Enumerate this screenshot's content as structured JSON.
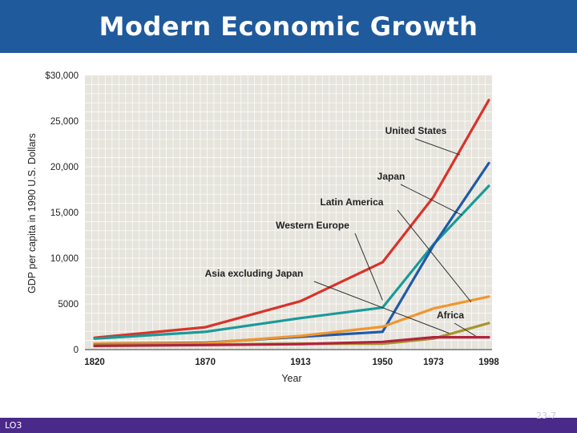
{
  "slide": {
    "title": "Modern Economic Growth",
    "footer_left": "LO3",
    "footer_right": "23-7"
  },
  "colors": {
    "title_bar": "#1f5a9c",
    "footer_bar": "#4a2a88",
    "plot_bg": "#e6e4dc",
    "grid": "#ffffff"
  },
  "chart_data": {
    "type": "line",
    "title": "",
    "xlabel": "Year",
    "ylabel": "GDP per capita in 1990 U.S. Dollars",
    "x": [
      1820,
      1870,
      1913,
      1950,
      1973,
      1998
    ],
    "x_tick_labels": [
      "1820",
      "1870",
      "1913",
      "1950",
      "1973",
      "1998"
    ],
    "ylim": [
      0,
      30000
    ],
    "y_ticks": [
      0,
      5000,
      10000,
      15000,
      20000,
      25000,
      30000
    ],
    "y_tick_labels": [
      "0",
      "5000",
      "10,000",
      "15,000",
      "20,000",
      "25,000",
      "$30,000"
    ],
    "grid": true,
    "series": [
      {
        "name": "United States",
        "color": "#d8332b",
        "values": [
          1300,
          2450,
          5300,
          9550,
          16700,
          27300
        ]
      },
      {
        "name": "Western Europe",
        "color": "#1a9a9a",
        "values": [
          1200,
          1950,
          3450,
          4600,
          11500,
          17900
        ]
      },
      {
        "name": "Japan",
        "color": "#1f5aa8",
        "values": [
          650,
          750,
          1400,
          1950,
          11400,
          20400
        ]
      },
      {
        "name": "Latin America",
        "color": "#f0962f",
        "values": [
          650,
          700,
          1500,
          2500,
          4500,
          5800
        ]
      },
      {
        "name": "Asia excluding Japan",
        "color": "#a8942e",
        "values": [
          550,
          550,
          650,
          650,
          1200,
          2900
        ]
      },
      {
        "name": "Africa",
        "color": "#b0243e",
        "values": [
          400,
          500,
          600,
          850,
          1350,
          1350
        ]
      }
    ],
    "annotations": [
      {
        "text": "United States",
        "series": "United States"
      },
      {
        "text": "Japan",
        "series": "Japan"
      },
      {
        "text": "Latin America",
        "series": "Latin America"
      },
      {
        "text": "Western Europe",
        "series": "Western Europe"
      },
      {
        "text": "Asia excluding Japan",
        "series": "Asia excluding Japan"
      },
      {
        "text": "Africa",
        "series": "Africa"
      }
    ]
  }
}
